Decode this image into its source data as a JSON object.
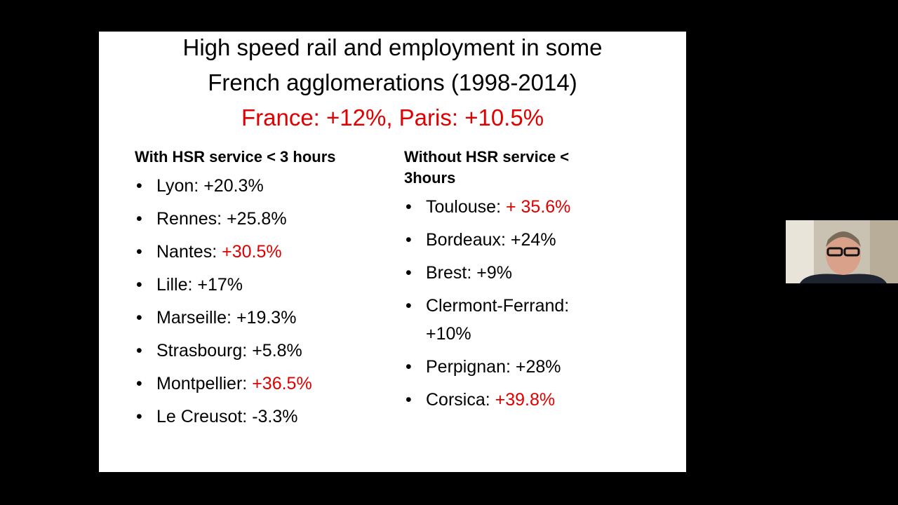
{
  "slide": {
    "title_lines": [
      "High speed rail and employment in some",
      "French agglomerations  (1998-2014)"
    ],
    "subtitle": "France: +12%, Paris: +10.5%",
    "subtitle_color": "#e00000",
    "columns": [
      {
        "heading": "With HSR service < 3 hours",
        "items": [
          {
            "label": "Lyon:",
            "value": "+20.3%",
            "color": "#000000"
          },
          {
            "label": "Rennes:",
            "value": "+25.8%",
            "color": "#000000"
          },
          {
            "label": "Nantes:",
            "value": "+30.5%",
            "color": "#e00000"
          },
          {
            "label": "Lille:",
            "value": "+17%",
            "color": "#000000"
          },
          {
            "label": "Marseille:",
            "value": "+19.3%",
            "color": "#000000"
          },
          {
            "label": "Strasbourg:",
            "value": "+5.8%",
            "color": "#000000"
          },
          {
            "label": "Montpellier:",
            "value": "+36.5%",
            "color": "#e00000"
          },
          {
            "label": "Le Creusot:",
            "value": "-3.3%",
            "color": "#000000"
          }
        ]
      },
      {
        "heading": "Without HSR service < 3hours",
        "items": [
          {
            "label": "Toulouse:",
            "value": "+ 35.6%",
            "color": "#e00000"
          },
          {
            "label": "Bordeaux:",
            "value": "+24%",
            "color": "#000000"
          },
          {
            "label": "Brest:",
            "value": "+9%",
            "color": "#000000"
          },
          {
            "label": "Clermont-Ferrand:",
            "value": "+10%",
            "color": "#000000"
          },
          {
            "label": "Perpignan:",
            "value": "+28%",
            "color": "#000000"
          },
          {
            "label": "Corsica:",
            "value": "+39.8%",
            "color": "#e00000"
          }
        ]
      }
    ]
  }
}
